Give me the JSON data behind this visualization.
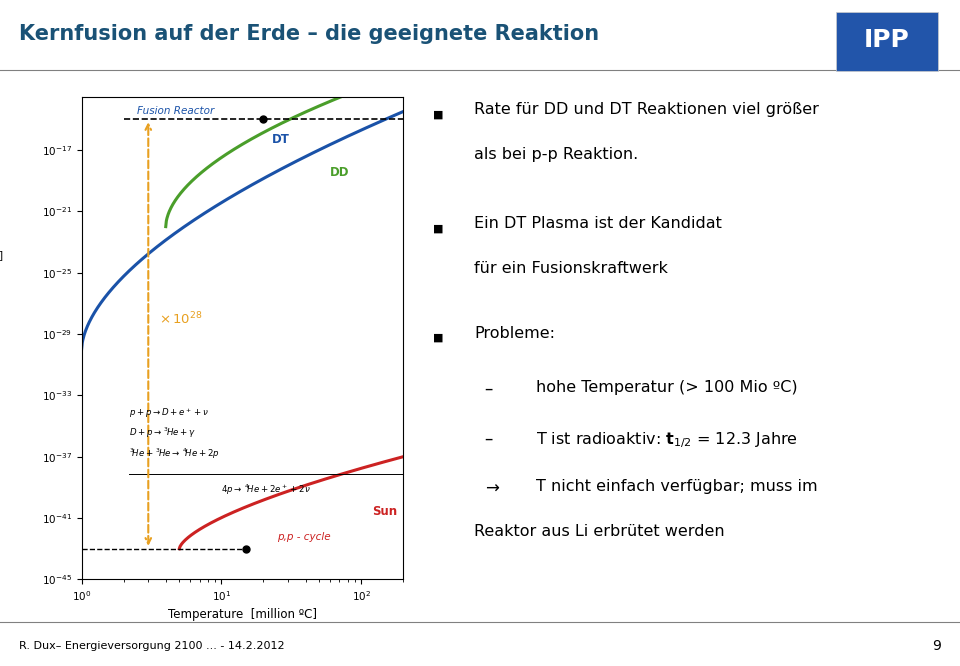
{
  "title": "Kernfusion auf der Erde – die geeignete Reaktion",
  "title_color": "#1a5276",
  "background_color": "#ffffff",
  "footer": "R. Dux– Energieversorgung 2100 ... - 14.2.2012",
  "page_num": "9",
  "bullet1_line1": "Rate für DD und DT Reaktionen viel größer",
  "bullet1_line2": "als bei p-p Reaktion.",
  "bullet2_line1": "Ein DT Plasma ist der Kandidat",
  "bullet2_line2": "für ein Fusionskraftwerk",
  "bullet3_head": "Probleme:",
  "sub1_line1": "hohe Temperatur (> 100 Mio ºC)",
  "sub2_line1": "T ist radioaktiv: $\\mathbf{t}_{1/2}$ = 12.3 Jahre",
  "sub3_line1": "T nicht einfach verfügbar; muss im",
  "sub3_line2": "Reaktor aus Li erbrütet werden",
  "dt_color": "#1a52a8",
  "dd_color": "#4a9e2a",
  "sun_color": "#cc2222",
  "orange_color": "#e8a020",
  "xlabel": "Temperature  [million ºC]"
}
